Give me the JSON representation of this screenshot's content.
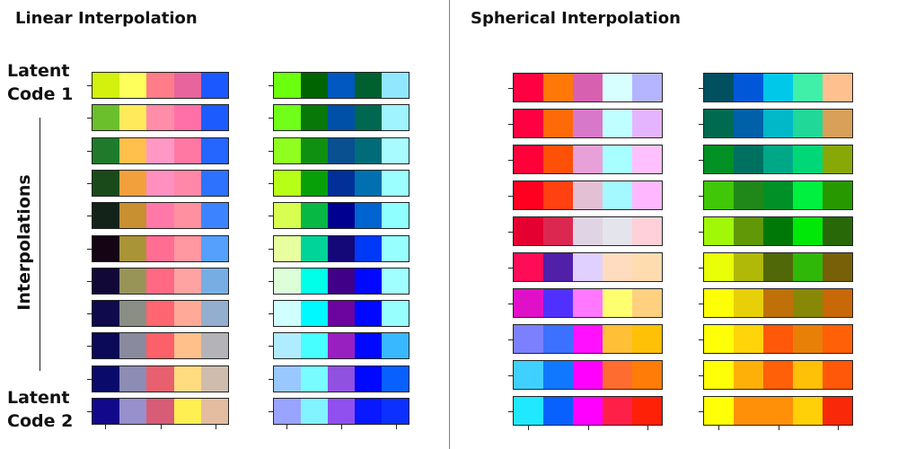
{
  "titles": {
    "linear": "Linear Interpolation",
    "spherical": "Spherical Interpolation"
  },
  "labels": {
    "latent1_line1": "Latent",
    "latent1_line2": "Code 1",
    "interpolations": "Interpolations",
    "latent2_line1": "Latent",
    "latent2_line2": "Code 2"
  },
  "panels": [
    {
      "rows": [
        [
          "#d2f10c",
          "#ffff5c",
          "#ff7c88",
          "#e8649c",
          "#1c58ff"
        ],
        [
          "#6cbf2c",
          "#ffea5c",
          "#ff8ca8",
          "#ff70a8",
          "#1c5cff"
        ],
        [
          "#1f7a2b",
          "#ffc04c",
          "#ff98c4",
          "#ff78a4",
          "#2466ff"
        ],
        [
          "#1a4a1a",
          "#f2a03c",
          "#ff90c0",
          "#ff88a8",
          "#2c72ff"
        ],
        [
          "#14231a",
          "#c89030",
          "#ff78a8",
          "#ff90a0",
          "#3c84ff"
        ],
        [
          "#140414",
          "#aa9438",
          "#ff6e92",
          "#ff98a0",
          "#54a0fc"
        ],
        [
          "#120838",
          "#989458",
          "#ff6a82",
          "#ffa2a2",
          "#76aee4"
        ],
        [
          "#0e0a4c",
          "#8a8e84",
          "#ff6670",
          "#ffaa98",
          "#94aed0"
        ],
        [
          "#0a0a58",
          "#8a8a9e",
          "#fc6068",
          "#ffc08c",
          "#b4b4b8"
        ],
        [
          "#0a0a6a",
          "#8c8cb4",
          "#e8606e",
          "#ffdc80",
          "#d0bcac"
        ],
        [
          "#12088c",
          "#9890cc",
          "#d85c76",
          "#ffef52",
          "#e4bca0"
        ]
      ]
    },
    {
      "rows": [
        [
          "#6cff10",
          "#006400",
          "#0058c0",
          "#006030",
          "#90e8ff"
        ],
        [
          "#70ff18",
          "#087808",
          "#0050a8",
          "#006850",
          "#a0f4ff"
        ],
        [
          "#90ff20",
          "#109010",
          "#085090",
          "#006c78",
          "#a8fcff"
        ],
        [
          "#b8ff18",
          "#08a008",
          "#003098",
          "#0070b0",
          "#9cffff"
        ],
        [
          "#d8ff50",
          "#08b844",
          "#000090",
          "#0064d0",
          "#90ffff"
        ],
        [
          "#e8ffa0",
          "#00d498",
          "#140878",
          "#0038f8",
          "#98ffff"
        ],
        [
          "#dcffd8",
          "#00ffe8",
          "#400088",
          "#0008ff",
          "#a0ffff"
        ],
        [
          "#d0ffff",
          "#00f8ff",
          "#6c04a0",
          "#0008ff",
          "#98ffff"
        ],
        [
          "#b0ecff",
          "#48ffff",
          "#9820c0",
          "#0008ff",
          "#38b8ff"
        ],
        [
          "#98c8ff",
          "#78fcff",
          "#9050e0",
          "#0008ff",
          "#0860ff"
        ],
        [
          "#98a4ff",
          "#80f4ff",
          "#9050f0",
          "#0818ff",
          "#0c30ff"
        ]
      ]
    },
    {
      "rows": [
        [
          "#ff0040",
          "#ff7808",
          "#d860b0",
          "#d8ffff",
          "#b4b4ff"
        ],
        [
          "#ff0040",
          "#ff6a08",
          "#d878c8",
          "#c0ffff",
          "#e4b4ff"
        ],
        [
          "#ff0038",
          "#ff5008",
          "#e8a0d8",
          "#a8ffff",
          "#ffc0ff"
        ],
        [
          "#ff0020",
          "#ff4010",
          "#e4c0d4",
          "#a4f8ff",
          "#ffb8ff"
        ],
        [
          "#e40030",
          "#dc2850",
          "#e0d4e4",
          "#e4e4ec",
          "#ffd0d8"
        ],
        [
          "#ff0c58",
          "#5020a8",
          "#e0d0ff",
          "#ffdcc0",
          "#ffdcb0"
        ],
        [
          "#e010c8",
          "#5030ff",
          "#ff78ff",
          "#ffff70",
          "#ffd080"
        ],
        [
          "#7c80ff",
          "#3c70ff",
          "#ff10ff",
          "#ffc038",
          "#ffc008"
        ],
        [
          "#40d0ff",
          "#1078ff",
          "#ff00ff",
          "#ff6c30",
          "#ff7c08"
        ],
        [
          "#20e8ff",
          "#0860ff",
          "#ff00ff",
          "#ff2048",
          "#ff2008"
        ]
      ]
    },
    {
      "rows": [
        [
          "#005060",
          "#0058d8",
          "#00c8e8",
          "#40f0a8",
          "#ffc090"
        ],
        [
          "#006a50",
          "#0060a8",
          "#00b8c8",
          "#20d898",
          "#d8a058"
        ],
        [
          "#009024",
          "#007060",
          "#00a888",
          "#00d878",
          "#88a808"
        ],
        [
          "#40c808",
          "#208818",
          "#009028",
          "#00f040",
          "#289800"
        ],
        [
          "#a0f808",
          "#609808",
          "#007808",
          "#00e808",
          "#286808"
        ],
        [
          "#e8ff08",
          "#b0b808",
          "#506808",
          "#30b808",
          "#786008"
        ],
        [
          "#ffff08",
          "#e8d008",
          "#c07008",
          "#888808",
          "#c86808"
        ],
        [
          "#ffff08",
          "#ffd408",
          "#ff5808",
          "#e88008",
          "#ff6008"
        ],
        [
          "#ffff08",
          "#ffb008",
          "#ff6008",
          "#ffc008",
          "#ff5808"
        ],
        [
          "#ffff08",
          "#ff9008",
          "#ff9008",
          "#ffd008",
          "#f82808"
        ]
      ]
    }
  ]
}
